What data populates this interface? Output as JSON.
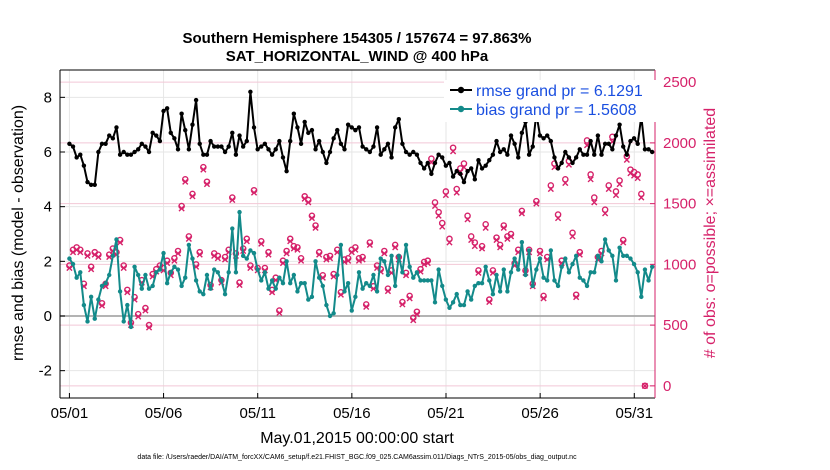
{
  "chart_data": {
    "type": "line",
    "title": "Southern Hemisphere 154305 / 157674 = 97.863%",
    "subtitle": "SAT_HORIZONTAL_WIND @ 400 hPa",
    "xlabel": "May.01,2015 00:00:00 start",
    "ylabel": "rmse and bias (model - observation)",
    "y2label": "# of obs: o=possible; ×=assimilated",
    "footnote": "data file: /Users/raeder/DAI/ATM_forcXX/CAM6_setup/f.e21.FHIST_BGC.f09_025.CAM6assim.011/Diags_NTrS_2015-05/obs_diag_output.nc",
    "xlim": [
      0.5,
      32.1
    ],
    "ylim": [
      -3,
      9
    ],
    "y2lim": [
      -1,
      26
    ],
    "x_ticks": [
      1,
      6,
      11,
      16,
      21,
      26,
      31
    ],
    "x_tick_labels": [
      "05/01",
      "05/06",
      "05/11",
      "05/16",
      "05/21",
      "05/26",
      "05/31"
    ],
    "y_ticks": [
      -2,
      0,
      2,
      4,
      6,
      8
    ],
    "y_tick_labels": [
      "-2",
      "0",
      "2",
      "4",
      "6",
      "8"
    ],
    "y2_ticks": [
      0,
      5,
      10,
      15,
      20,
      25
    ],
    "y2_tick_labels": [
      "0",
      "500",
      "1000",
      "1500",
      "2000",
      "2500"
    ],
    "grid": true,
    "legend": "top-right",
    "colors": {
      "rmse": "#000000",
      "bias": "#138a8a",
      "obs": "#d6226a",
      "zero_line": "#a8a8a8"
    },
    "series": [
      {
        "name": "rmse grand pr = 6.1291",
        "axis": "left",
        "values": [
          6.3,
          6.2,
          5.8,
          5.9,
          5.5,
          4.9,
          4.8,
          4.8,
          6.0,
          6.3,
          6.3,
          6.6,
          6.5,
          6.9,
          5.9,
          6.0,
          5.9,
          5.9,
          6.0,
          6.1,
          6.3,
          6.2,
          6.0,
          6.7,
          6.6,
          6.4,
          7.5,
          7.6,
          6.7,
          6.5,
          6.1,
          7.4,
          6.8,
          6.1,
          7.0,
          7.9,
          6.3,
          5.9,
          5.9,
          6.4,
          6.2,
          6.2,
          6.2,
          6.0,
          6.2,
          6.7,
          5.9,
          6.6,
          6.2,
          6.4,
          8.2,
          6.9,
          6.1,
          6.2,
          6.3,
          6.1,
          5.9,
          6.1,
          6.4,
          5.8,
          5.3,
          6.4,
          7.4,
          6.9,
          6.3,
          7.1,
          6.7,
          6.8,
          6.1,
          6.4,
          6.0,
          5.6,
          6.0,
          6.5,
          6.8,
          6.3,
          6.1,
          7.0,
          6.9,
          6.8,
          6.9,
          6.2,
          6.1,
          6.0,
          6.2,
          6.9,
          5.9,
          6.1,
          6.3,
          5.8,
          6.9,
          7.2,
          6.3,
          6.0,
          5.9,
          6.0,
          5.9,
          5.6,
          5.4,
          5.6,
          5.2,
          5.6,
          5.9,
          5.8,
          5.5,
          5.6,
          5.1,
          5.3,
          5.2,
          4.9,
          5.3,
          5.4,
          5.0,
          5.7,
          5.4,
          5.5,
          5.7,
          5.9,
          6.4,
          6.0,
          6.1,
          5.9,
          6.6,
          6.3,
          5.8,
          6.7,
          7.1,
          5.9,
          6.2,
          7.4,
          6.6,
          6.5,
          6.6,
          6.4,
          5.8,
          5.4,
          5.6,
          6.0,
          5.8,
          5.6,
          5.8,
          6.1,
          5.9,
          5.9,
          6.4,
          5.9,
          6.6,
          5.9,
          6.3,
          6.3,
          6.1,
          6.6,
          7.0,
          6.2,
          5.9,
          6.4,
          6.5,
          6.3,
          7.3,
          6.1,
          6.1,
          6.0
        ]
      },
      {
        "name": "bias grand pr = 1.5608",
        "axis": "left",
        "values": [
          2.1,
          1.9,
          1.4,
          1.6,
          0.4,
          -0.2,
          0.7,
          -0.1,
          0.6,
          1.1,
          1.2,
          1.5,
          2.2,
          2.8,
          0.9,
          -0.2,
          0.4,
          -0.4,
          1.8,
          1.5,
          1.0,
          1.5,
          1.0,
          1.1,
          1.6,
          1.7,
          2.3,
          1.2,
          1.6,
          1.8,
          1.7,
          1.1,
          1.4,
          2.6,
          2.1,
          1.3,
          0.9,
          0.8,
          1.5,
          1.0,
          1.7,
          1.6,
          1.3,
          0.8,
          1.6,
          3.2,
          1.6,
          3.8,
          2.2,
          2.1,
          2.4,
          2.3,
          1.7,
          1.3,
          1.6,
          1.0,
          1.3,
          1.0,
          1.4,
          1.2,
          2.0,
          1.2,
          1.5,
          0.9,
          1.2,
          1.2,
          0.6,
          0.7,
          2.0,
          1.4,
          1.1,
          0.4,
          0.0,
          0.1,
          1.5,
          2.6,
          0.9,
          1.2,
          0.2,
          0.7,
          1.6,
          1.0,
          1.2,
          1.1,
          1.5,
          0.9,
          2.1,
          2.0,
          1.5,
          2.2,
          1.1,
          2.2,
          1.6,
          2.6,
          1.8,
          1.4,
          1.6,
          1.3,
          1.3,
          1.3,
          1.3,
          0.5,
          1.7,
          1.1,
          0.6,
          0.3,
          0.5,
          0.8,
          0.4,
          0.4,
          0.9,
          0.6,
          1.1,
          1.2,
          1.2,
          1.8,
          1.3,
          0.8,
          1.5,
          0.9,
          1.7,
          0.9,
          1.6,
          2.1,
          1.7,
          2.7,
          1.5,
          2.4,
          1.1,
          1.7,
          2.1,
          1.4,
          1.3,
          2.4,
          1.3,
          1.1,
          1.8,
          2.1,
          1.6,
          1.9,
          2.2,
          1.4,
          1.3,
          1.1,
          1.6,
          1.6,
          2.2,
          2.0,
          2.8,
          2.4,
          2.2,
          1.3,
          2.5,
          2.2,
          2.2,
          2.1,
          1.9,
          1.6,
          0.7,
          1.7,
          1.3,
          1.8
        ]
      }
    ],
    "obs_possible": {
      "axis": "right",
      "values": [
        9.9,
        11.2,
        11.4,
        11.2,
        8.4,
        10.9,
        9.8,
        11.0,
        10.8,
        6.8,
        8.4,
        10.8,
        11.3,
        11.0,
        12.0,
        9.9,
        7.9,
        5.2,
        7.3,
        5.9,
        8.7,
        6.4,
        5.0,
        9.2,
        9.6,
        9.9,
        9.7,
        10.3,
        9.3,
        10.5,
        11.1,
        14.8,
        17.0,
        12.3,
        15.8,
        10.0,
        11.0,
        18.0,
        16.8,
        8.3,
        10.9,
        10.7,
        8.7,
        10.6,
        11.2,
        15.5,
        10.9,
        8.5,
        11.3,
        12.1,
        9.9,
        16.1,
        9.7,
        11.9,
        9.7,
        11.0,
        7.9,
        8.9,
        6.2,
        10.3,
        11.1,
        12.1,
        11.5,
        11.4,
        10.5,
        15.6,
        15.3,
        14.0,
        13.2,
        11.0,
        9.1,
        10.6,
        10.7,
        9.2,
        11.2,
        7.7,
        10.4,
        10.5,
        11.2,
        11.4,
        10.5,
        10.6,
        6.7,
        11.8,
        8.2,
        9.9,
        9.6,
        11.1,
        8.0,
        9.5,
        11.6,
        10.6,
        6.9,
        9.3,
        7.4,
        5.6,
        6.1,
        9.6,
        10.2,
        10.3,
        18.7,
        15.1,
        14.3,
        13.4,
        16.0,
        12.1,
        19.6,
        16.2,
        17.9,
        18.3,
        14.0,
        12.3,
        11.8,
        9.5,
        11.5,
        13.3,
        7.1,
        9.5,
        12.2,
        11.6,
        13.2,
        12.3,
        12.5,
        10.1,
        11.2,
        14.4,
        9.5,
        11.2,
        8.4,
        15.2,
        11.1,
        7.4,
        10.6,
        16.5,
        18.3,
        14.1,
        10.3,
        17.0,
        18.5,
        12.6,
        7.5,
        11.0,
        22.4,
        20.2,
        17.4,
        15.5,
        10.6,
        11.1,
        14.5,
        16.5,
        20.5,
        16.0,
        16.9,
        12.0,
        18.9,
        17.8,
        17.6,
        17.4,
        15.8,
        0.0
      ]
    },
    "obs_assimilated": {
      "axis": "right",
      "values": [
        9.7,
        11.0,
        11.2,
        11.0,
        8.2,
        10.7,
        9.6,
        10.8,
        10.6,
        6.6,
        8.2,
        10.6,
        11.1,
        10.8,
        11.8,
        9.7,
        7.7,
        5.0,
        7.1,
        5.7,
        8.5,
        6.2,
        4.8,
        9.0,
        9.4,
        9.7,
        9.5,
        10.1,
        9.1,
        10.3,
        10.9,
        14.6,
        16.8,
        12.1,
        15.6,
        9.8,
        10.8,
        17.8,
        16.6,
        8.1,
        10.7,
        10.5,
        8.5,
        10.4,
        11.0,
        15.3,
        10.7,
        8.3,
        11.1,
        11.9,
        9.7,
        15.9,
        9.5,
        11.7,
        9.5,
        10.8,
        7.7,
        8.7,
        6.0,
        10.1,
        10.9,
        11.9,
        11.3,
        11.2,
        10.3,
        15.4,
        15.1,
        13.8,
        13.0,
        10.8,
        8.9,
        10.4,
        10.5,
        9.0,
        11.0,
        7.5,
        10.2,
        10.3,
        11.0,
        11.2,
        10.3,
        10.4,
        6.5,
        11.6,
        8.0,
        9.7,
        9.4,
        10.9,
        7.8,
        9.3,
        11.4,
        10.4,
        6.7,
        9.1,
        7.2,
        5.4,
        5.9,
        9.4,
        10.0,
        10.1,
        18.4,
        14.8,
        14.0,
        13.1,
        15.7,
        11.8,
        19.3,
        15.9,
        17.6,
        18.0,
        13.7,
        12.0,
        11.5,
        9.3,
        11.3,
        13.0,
        6.9,
        9.3,
        12.0,
        11.4,
        13.0,
        12.1,
        12.3,
        9.9,
        11.0,
        14.2,
        9.3,
        11.0,
        8.2,
        15.0,
        10.9,
        7.2,
        10.4,
        16.2,
        18.0,
        13.8,
        10.1,
        16.7,
        18.2,
        12.3,
        7.3,
        10.8,
        22.0,
        19.8,
        17.0,
        15.1,
        10.4,
        10.9,
        14.2,
        16.2,
        20.1,
        15.7,
        16.6,
        11.8,
        18.6,
        17.5,
        17.3,
        17.1,
        15.5,
        0.0
      ]
    }
  }
}
